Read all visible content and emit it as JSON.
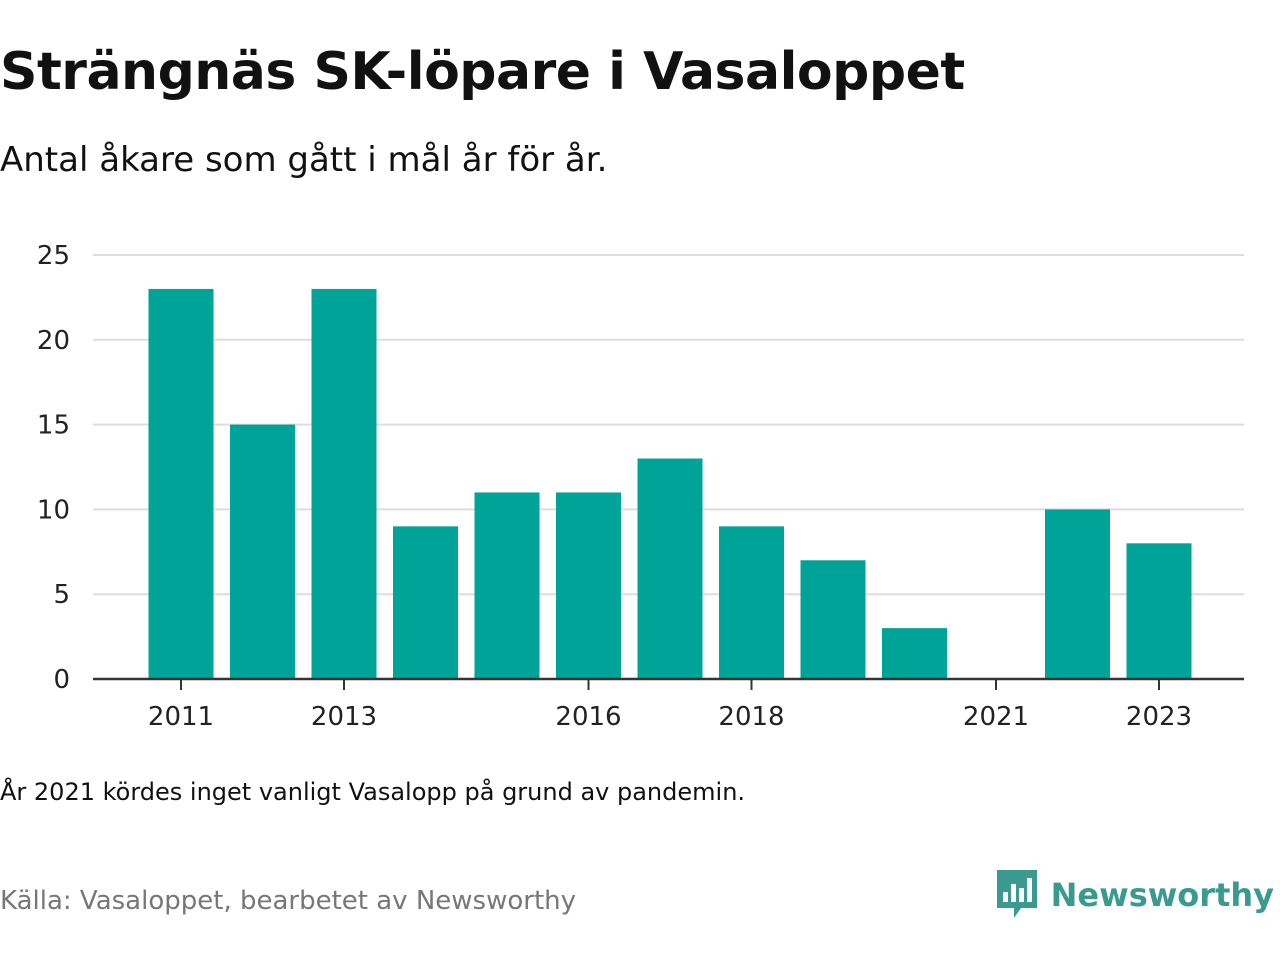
{
  "title": "Strängnäs SK-löpare i Vasaloppet",
  "subtitle": "Antal åkare som gått i mål år för år.",
  "note": "År 2021 kördes inget vanligt Vasalopp på grund av pandemin.",
  "source": "Källa: Vasaloppet, bearbetet av Newsworthy",
  "brand": {
    "name": "Newsworthy",
    "icon": "newsworthy-logo-icon",
    "color": "#3a9a8f"
  },
  "colors": {
    "bar": "#00a398",
    "grid": "#dddddd",
    "axis": "#333333",
    "text": "#111111",
    "muted": "#777777"
  },
  "chart_data": {
    "type": "bar",
    "categories": [
      2011,
      2012,
      2013,
      2014,
      2015,
      2016,
      2017,
      2018,
      2019,
      2020,
      2021,
      2022,
      2023
    ],
    "values": [
      23,
      15,
      23,
      9,
      11,
      11,
      13,
      9,
      7,
      3,
      0,
      10,
      8
    ],
    "x_tick_labels": [
      "2011",
      "2013",
      "2016",
      "2018",
      "2021",
      "2023"
    ],
    "y_ticks": [
      0,
      5,
      10,
      15,
      20,
      25
    ],
    "ylim": [
      0,
      25
    ],
    "grid": true,
    "legend": "none"
  }
}
